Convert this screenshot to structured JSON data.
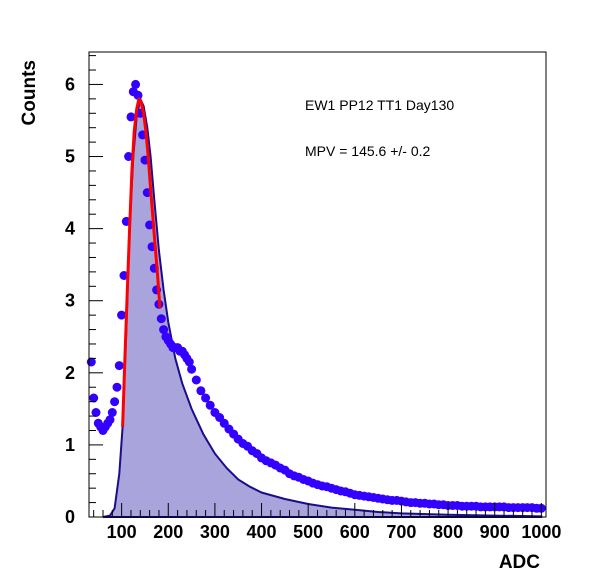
{
  "chart_data": {
    "type": "scatter",
    "xlabel": "ADC",
    "ylabel": "Counts",
    "xlim": [
      30,
      1010
    ],
    "ylim": [
      0,
      6.45
    ],
    "x_ticks": [
      "100",
      "200",
      "300",
      "400",
      "500",
      "600",
      "700",
      "800",
      "900",
      "1000"
    ],
    "y_ticks": [
      "0",
      "1",
      "2",
      "3",
      "4",
      "5",
      "6"
    ],
    "annotations": [
      "EW1 PP12 TT1 Day130",
      "MPV = 145.6 +/- 0.2"
    ],
    "colors": {
      "points": "#3300ff",
      "fit": "#ff0000",
      "fill": "#a9a4dc",
      "fill_edge": "#1a0d8c"
    },
    "fit": {
      "mpv": 145.6,
      "x": [
        102,
        107,
        112,
        117,
        122,
        127,
        132,
        137,
        142,
        147,
        152,
        157,
        162,
        167,
        172,
        177,
        182
      ],
      "y": [
        1.25,
        2.2,
        3.1,
        4.0,
        4.8,
        5.35,
        5.65,
        5.8,
        5.75,
        5.6,
        5.35,
        5.0,
        4.55,
        4.15,
        3.75,
        3.35,
        2.9
      ]
    },
    "filled_curve": {
      "x": [
        60,
        75,
        85,
        95,
        102,
        110,
        117,
        125,
        132,
        140,
        147,
        155,
        162,
        170,
        180,
        190,
        200,
        215,
        230,
        250,
        275,
        300,
        325,
        350,
        375,
        400,
        450,
        500,
        550,
        600,
        650,
        700,
        800,
        900,
        1000
      ],
      "y": [
        0,
        0.02,
        0.12,
        0.6,
        1.25,
        2.6,
        4.0,
        5.0,
        5.55,
        5.8,
        5.7,
        5.4,
        5.0,
        4.4,
        3.7,
        3.15,
        2.7,
        2.2,
        1.85,
        1.5,
        1.15,
        0.88,
        0.68,
        0.52,
        0.42,
        0.34,
        0.25,
        0.18,
        0.13,
        0.1,
        0.07,
        0.05,
        0.03,
        0.02,
        0.01
      ]
    },
    "points": {
      "x": [
        35,
        40,
        45,
        50,
        55,
        60,
        65,
        70,
        75,
        80,
        85,
        90,
        95,
        100,
        105,
        110,
        115,
        120,
        125,
        130,
        135,
        140,
        145,
        150,
        155,
        160,
        165,
        170,
        175,
        180,
        185,
        190,
        195,
        200,
        205,
        210,
        215,
        220,
        225,
        230,
        235,
        240,
        245,
        250,
        260,
        270,
        280,
        290,
        300,
        310,
        320,
        330,
        340,
        350,
        360,
        370,
        380,
        390,
        400,
        410,
        420,
        430,
        440,
        450,
        460,
        470,
        480,
        490,
        500,
        510,
        520,
        530,
        540,
        550,
        560,
        570,
        580,
        590,
        600,
        610,
        620,
        630,
        640,
        650,
        660,
        670,
        680,
        690,
        700,
        710,
        720,
        730,
        740,
        750,
        760,
        770,
        780,
        790,
        800,
        810,
        820,
        830,
        840,
        850,
        860,
        870,
        880,
        890,
        900,
        910,
        920,
        930,
        940,
        950,
        960,
        970,
        980,
        990,
        1000
      ],
      "y": [
        2.15,
        1.65,
        1.45,
        1.3,
        1.25,
        1.2,
        1.25,
        1.3,
        1.35,
        1.45,
        1.6,
        1.8,
        2.1,
        2.8,
        3.35,
        4.1,
        5.0,
        5.55,
        5.9,
        6.0,
        5.85,
        5.6,
        5.3,
        4.95,
        4.5,
        4.05,
        3.75,
        3.45,
        3.15,
        2.95,
        2.75,
        2.6,
        2.5,
        2.45,
        2.4,
        2.35,
        2.35,
        2.35,
        2.3,
        2.3,
        2.25,
        2.2,
        2.15,
        2.05,
        1.9,
        1.75,
        1.65,
        1.55,
        1.45,
        1.38,
        1.3,
        1.22,
        1.15,
        1.08,
        1.02,
        0.98,
        0.92,
        0.88,
        0.82,
        0.78,
        0.75,
        0.72,
        0.68,
        0.65,
        0.6,
        0.57,
        0.55,
        0.52,
        0.5,
        0.47,
        0.45,
        0.43,
        0.42,
        0.4,
        0.38,
        0.36,
        0.35,
        0.33,
        0.31,
        0.3,
        0.29,
        0.28,
        0.27,
        0.26,
        0.25,
        0.24,
        0.23,
        0.23,
        0.22,
        0.21,
        0.2,
        0.2,
        0.19,
        0.19,
        0.18,
        0.18,
        0.17,
        0.17,
        0.16,
        0.16,
        0.16,
        0.15,
        0.15,
        0.15,
        0.15,
        0.14,
        0.14,
        0.14,
        0.14,
        0.14,
        0.14,
        0.13,
        0.13,
        0.13,
        0.13,
        0.13,
        0.13,
        0.12,
        0.12
      ]
    }
  }
}
